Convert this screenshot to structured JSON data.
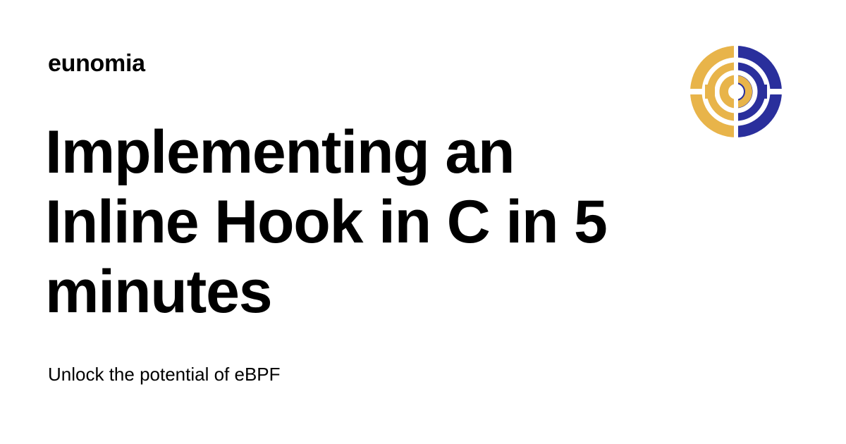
{
  "site": {
    "name": "eunomia"
  },
  "article": {
    "title": "Implementing an Inline Hook in C in 5 minutes",
    "subtitle": "Unlock the potential of eBPF"
  },
  "logo": {
    "icon": "eunomia-logo-icon",
    "colors": {
      "gold": "#E8B44A",
      "navy": "#2A2F9C"
    }
  }
}
